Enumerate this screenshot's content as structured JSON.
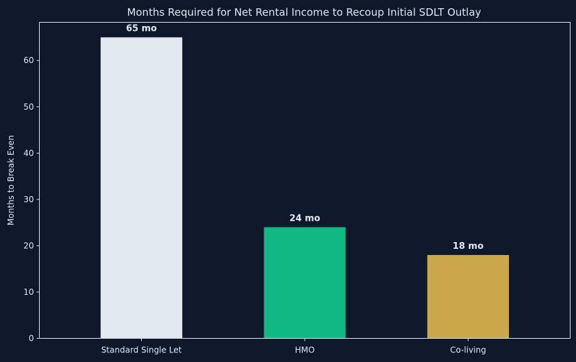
{
  "chart_data": {
    "type": "bar",
    "title": "Months Required for Net Rental Income to Recoup Initial SDLT Outlay",
    "xlabel": "",
    "ylabel": "Months to Break Even",
    "categories": [
      "Standard Single Let",
      "HMO",
      "Co-living"
    ],
    "values": [
      65,
      24,
      18
    ],
    "data_labels": [
      "65 mo",
      "24 mo",
      "18 mo"
    ],
    "colors": [
      "#e2e8f0",
      "#10b981",
      "#c9a74a"
    ],
    "ylim": [
      0,
      68.25
    ],
    "yticks": [
      0,
      10,
      20,
      30,
      40,
      50,
      60
    ],
    "grid": false,
    "legend": "none",
    "background": "#0f172a",
    "text_color": "#e2e8f0"
  }
}
